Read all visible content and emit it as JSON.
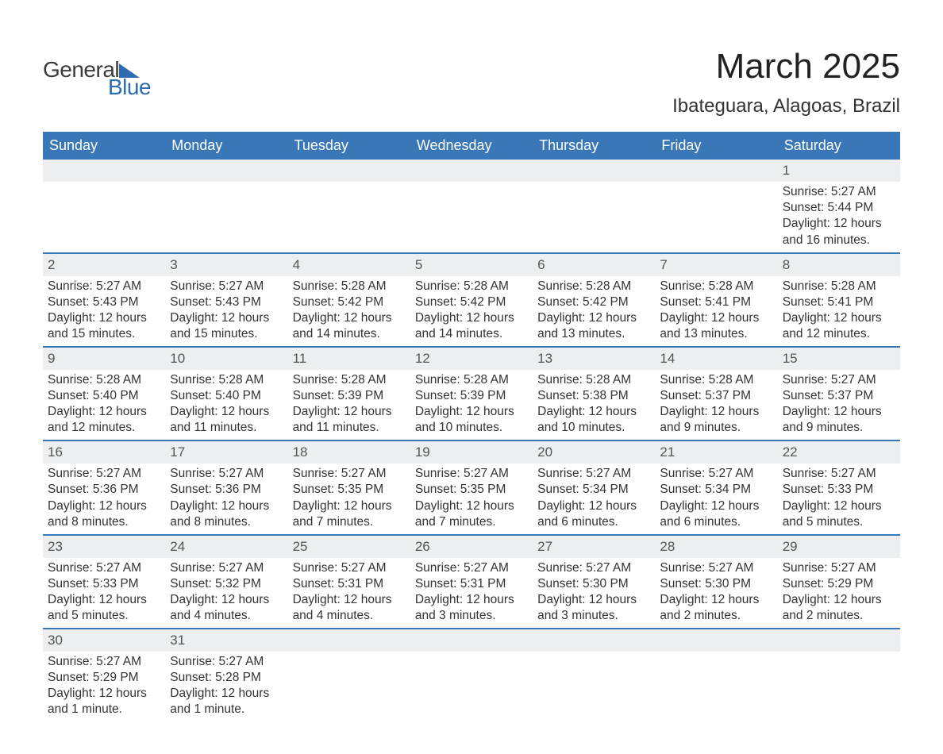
{
  "logo": {
    "text1": "General",
    "text2": "Blue",
    "shape_color": "#2d6cb0"
  },
  "title": "March 2025",
  "location": "Ibateguara, Alagoas, Brazil",
  "colors": {
    "header_bg": "#3a77b7",
    "header_fg": "#ffffff",
    "daynum_bg": "#eceeef",
    "border": "#3a77b7",
    "text": "#333333"
  },
  "weekdays": [
    "Sunday",
    "Monday",
    "Tuesday",
    "Wednesday",
    "Thursday",
    "Friday",
    "Saturday"
  ],
  "weeks": [
    [
      {
        "blank": true
      },
      {
        "blank": true
      },
      {
        "blank": true
      },
      {
        "blank": true
      },
      {
        "blank": true
      },
      {
        "blank": true
      },
      {
        "n": "1",
        "sunrise": "Sunrise: 5:27 AM",
        "sunset": "Sunset: 5:44 PM",
        "daylight1": "Daylight: 12 hours",
        "daylight2": "and 16 minutes."
      }
    ],
    [
      {
        "n": "2",
        "sunrise": "Sunrise: 5:27 AM",
        "sunset": "Sunset: 5:43 PM",
        "daylight1": "Daylight: 12 hours",
        "daylight2": "and 15 minutes."
      },
      {
        "n": "3",
        "sunrise": "Sunrise: 5:27 AM",
        "sunset": "Sunset: 5:43 PM",
        "daylight1": "Daylight: 12 hours",
        "daylight2": "and 15 minutes."
      },
      {
        "n": "4",
        "sunrise": "Sunrise: 5:28 AM",
        "sunset": "Sunset: 5:42 PM",
        "daylight1": "Daylight: 12 hours",
        "daylight2": "and 14 minutes."
      },
      {
        "n": "5",
        "sunrise": "Sunrise: 5:28 AM",
        "sunset": "Sunset: 5:42 PM",
        "daylight1": "Daylight: 12 hours",
        "daylight2": "and 14 minutes."
      },
      {
        "n": "6",
        "sunrise": "Sunrise: 5:28 AM",
        "sunset": "Sunset: 5:42 PM",
        "daylight1": "Daylight: 12 hours",
        "daylight2": "and 13 minutes."
      },
      {
        "n": "7",
        "sunrise": "Sunrise: 5:28 AM",
        "sunset": "Sunset: 5:41 PM",
        "daylight1": "Daylight: 12 hours",
        "daylight2": "and 13 minutes."
      },
      {
        "n": "8",
        "sunrise": "Sunrise: 5:28 AM",
        "sunset": "Sunset: 5:41 PM",
        "daylight1": "Daylight: 12 hours",
        "daylight2": "and 12 minutes."
      }
    ],
    [
      {
        "n": "9",
        "sunrise": "Sunrise: 5:28 AM",
        "sunset": "Sunset: 5:40 PM",
        "daylight1": "Daylight: 12 hours",
        "daylight2": "and 12 minutes."
      },
      {
        "n": "10",
        "sunrise": "Sunrise: 5:28 AM",
        "sunset": "Sunset: 5:40 PM",
        "daylight1": "Daylight: 12 hours",
        "daylight2": "and 11 minutes."
      },
      {
        "n": "11",
        "sunrise": "Sunrise: 5:28 AM",
        "sunset": "Sunset: 5:39 PM",
        "daylight1": "Daylight: 12 hours",
        "daylight2": "and 11 minutes."
      },
      {
        "n": "12",
        "sunrise": "Sunrise: 5:28 AM",
        "sunset": "Sunset: 5:39 PM",
        "daylight1": "Daylight: 12 hours",
        "daylight2": "and 10 minutes."
      },
      {
        "n": "13",
        "sunrise": "Sunrise: 5:28 AM",
        "sunset": "Sunset: 5:38 PM",
        "daylight1": "Daylight: 12 hours",
        "daylight2": "and 10 minutes."
      },
      {
        "n": "14",
        "sunrise": "Sunrise: 5:28 AM",
        "sunset": "Sunset: 5:37 PM",
        "daylight1": "Daylight: 12 hours",
        "daylight2": "and 9 minutes."
      },
      {
        "n": "15",
        "sunrise": "Sunrise: 5:27 AM",
        "sunset": "Sunset: 5:37 PM",
        "daylight1": "Daylight: 12 hours",
        "daylight2": "and 9 minutes."
      }
    ],
    [
      {
        "n": "16",
        "sunrise": "Sunrise: 5:27 AM",
        "sunset": "Sunset: 5:36 PM",
        "daylight1": "Daylight: 12 hours",
        "daylight2": "and 8 minutes."
      },
      {
        "n": "17",
        "sunrise": "Sunrise: 5:27 AM",
        "sunset": "Sunset: 5:36 PM",
        "daylight1": "Daylight: 12 hours",
        "daylight2": "and 8 minutes."
      },
      {
        "n": "18",
        "sunrise": "Sunrise: 5:27 AM",
        "sunset": "Sunset: 5:35 PM",
        "daylight1": "Daylight: 12 hours",
        "daylight2": "and 7 minutes."
      },
      {
        "n": "19",
        "sunrise": "Sunrise: 5:27 AM",
        "sunset": "Sunset: 5:35 PM",
        "daylight1": "Daylight: 12 hours",
        "daylight2": "and 7 minutes."
      },
      {
        "n": "20",
        "sunrise": "Sunrise: 5:27 AM",
        "sunset": "Sunset: 5:34 PM",
        "daylight1": "Daylight: 12 hours",
        "daylight2": "and 6 minutes."
      },
      {
        "n": "21",
        "sunrise": "Sunrise: 5:27 AM",
        "sunset": "Sunset: 5:34 PM",
        "daylight1": "Daylight: 12 hours",
        "daylight2": "and 6 minutes."
      },
      {
        "n": "22",
        "sunrise": "Sunrise: 5:27 AM",
        "sunset": "Sunset: 5:33 PM",
        "daylight1": "Daylight: 12 hours",
        "daylight2": "and 5 minutes."
      }
    ],
    [
      {
        "n": "23",
        "sunrise": "Sunrise: 5:27 AM",
        "sunset": "Sunset: 5:33 PM",
        "daylight1": "Daylight: 12 hours",
        "daylight2": "and 5 minutes."
      },
      {
        "n": "24",
        "sunrise": "Sunrise: 5:27 AM",
        "sunset": "Sunset: 5:32 PM",
        "daylight1": "Daylight: 12 hours",
        "daylight2": "and 4 minutes."
      },
      {
        "n": "25",
        "sunrise": "Sunrise: 5:27 AM",
        "sunset": "Sunset: 5:31 PM",
        "daylight1": "Daylight: 12 hours",
        "daylight2": "and 4 minutes."
      },
      {
        "n": "26",
        "sunrise": "Sunrise: 5:27 AM",
        "sunset": "Sunset: 5:31 PM",
        "daylight1": "Daylight: 12 hours",
        "daylight2": "and 3 minutes."
      },
      {
        "n": "27",
        "sunrise": "Sunrise: 5:27 AM",
        "sunset": "Sunset: 5:30 PM",
        "daylight1": "Daylight: 12 hours",
        "daylight2": "and 3 minutes."
      },
      {
        "n": "28",
        "sunrise": "Sunrise: 5:27 AM",
        "sunset": "Sunset: 5:30 PM",
        "daylight1": "Daylight: 12 hours",
        "daylight2": "and 2 minutes."
      },
      {
        "n": "29",
        "sunrise": "Sunrise: 5:27 AM",
        "sunset": "Sunset: 5:29 PM",
        "daylight1": "Daylight: 12 hours",
        "daylight2": "and 2 minutes."
      }
    ],
    [
      {
        "n": "30",
        "sunrise": "Sunrise: 5:27 AM",
        "sunset": "Sunset: 5:29 PM",
        "daylight1": "Daylight: 12 hours",
        "daylight2": "and 1 minute."
      },
      {
        "n": "31",
        "sunrise": "Sunrise: 5:27 AM",
        "sunset": "Sunset: 5:28 PM",
        "daylight1": "Daylight: 12 hours",
        "daylight2": "and 1 minute."
      },
      {
        "blank": true
      },
      {
        "blank": true
      },
      {
        "blank": true
      },
      {
        "blank": true
      },
      {
        "blank": true
      }
    ]
  ]
}
